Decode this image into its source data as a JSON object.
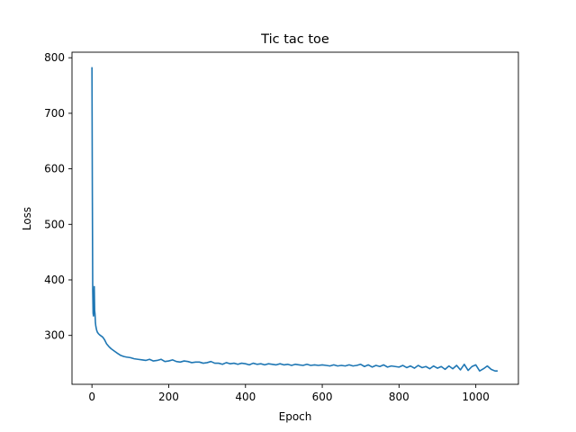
{
  "chart_data": {
    "type": "line",
    "title": "Tic tac toe",
    "xlabel": "Epoch",
    "ylabel": "Loss",
    "xlim": [
      -52,
      1111
    ],
    "ylim": [
      212,
      810
    ],
    "xticks": [
      0,
      200,
      400,
      600,
      800,
      1000
    ],
    "yticks": [
      300,
      400,
      500,
      600,
      700,
      800
    ],
    "grid": false,
    "legend": "none",
    "series": [
      {
        "color": "#1f77b4",
        "x": [
          0,
          1,
          2,
          3,
          4,
          5,
          6,
          7,
          8,
          9,
          10,
          12,
          14,
          17,
          20,
          24,
          28,
          33,
          38,
          44,
          50,
          58,
          66,
          75,
          83,
          90,
          100,
          110,
          120,
          130,
          140,
          150,
          160,
          170,
          180,
          190,
          200,
          210,
          220,
          230,
          240,
          250,
          260,
          270,
          280,
          290,
          300,
          310,
          320,
          330,
          340,
          350,
          360,
          370,
          380,
          390,
          400,
          410,
          420,
          430,
          440,
          450,
          460,
          470,
          480,
          490,
          500,
          510,
          520,
          530,
          540,
          550,
          560,
          570,
          580,
          590,
          600,
          610,
          620,
          630,
          640,
          650,
          660,
          670,
          680,
          690,
          700,
          710,
          720,
          730,
          740,
          750,
          760,
          770,
          780,
          790,
          800,
          810,
          820,
          830,
          840,
          850,
          860,
          870,
          880,
          890,
          900,
          910,
          920,
          930,
          940,
          950,
          960,
          970,
          980,
          990,
          1000,
          1010,
          1020,
          1030,
          1040,
          1050,
          1057
        ],
        "y": [
          783,
          560,
          380,
          340,
          335,
          362,
          388,
          345,
          338,
          323,
          317,
          310,
          306,
          303,
          301,
          299,
          297,
          292,
          285,
          280,
          276,
          272,
          268,
          264,
          262,
          261,
          260,
          258,
          257,
          256,
          255,
          257,
          254,
          255,
          257,
          253,
          254,
          256,
          253,
          252,
          254,
          253,
          251,
          252,
          252,
          250,
          251,
          253,
          250,
          250,
          248,
          251,
          249,
          250,
          248,
          250,
          249,
          247,
          250,
          248,
          249,
          247,
          249,
          248,
          247,
          249,
          247,
          248,
          246,
          248,
          247,
          246,
          248,
          246,
          247,
          246,
          247,
          246,
          245,
          247,
          245,
          246,
          245,
          247,
          245,
          246,
          248,
          244,
          247,
          243,
          246,
          244,
          247,
          243,
          245,
          244,
          243,
          246,
          242,
          245,
          241,
          246,
          242,
          244,
          240,
          245,
          241,
          244,
          239,
          245,
          240,
          246,
          238,
          248,
          237,
          244,
          247,
          236,
          240,
          245,
          239,
          236,
          236
        ]
      }
    ]
  }
}
